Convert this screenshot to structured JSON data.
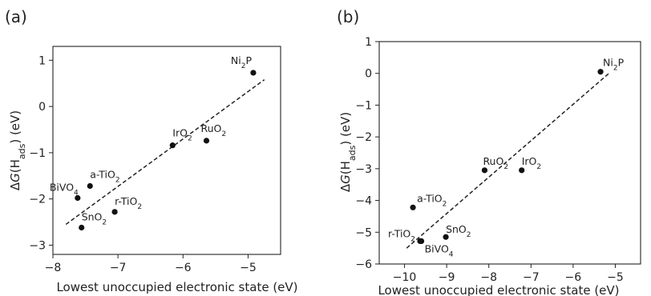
{
  "chart_data": [
    {
      "type": "scatter",
      "panel_label": "(a)",
      "xlabel": "Lowest unoccupied electronic state (eV)",
      "ylabel": "ΔG(H_ads) (eV)",
      "xlim": [
        -8,
        -4.5
      ],
      "ylim": [
        -3.2,
        1.3
      ],
      "xticks": [
        "−8",
        "−7",
        "−6",
        "−5"
      ],
      "yticks": [
        "1",
        "0",
        "−1",
        "−2",
        "−3"
      ],
      "grid": false,
      "points": [
        {
          "label": "Ni₂P",
          "x": -4.92,
          "y": 0.73
        },
        {
          "label": "IrO₂",
          "x": -6.16,
          "y": -0.84
        },
        {
          "label": "RuO₂",
          "x": -5.64,
          "y": -0.74
        },
        {
          "label": "a-TiO₂",
          "x": -7.43,
          "y": -1.72
        },
        {
          "label": "BiVO₄",
          "x": -7.62,
          "y": -1.98
        },
        {
          "label": "r-TiO₂",
          "x": -7.05,
          "y": -2.28
        },
        {
          "label": "SnO₂",
          "x": -7.56,
          "y": -2.62
        }
      ],
      "fit_line": {
        "x": [
          -7.8,
          -4.75
        ],
        "y": [
          -2.55,
          0.58
        ],
        "style": "dashed"
      }
    },
    {
      "type": "scatter",
      "panel_label": "(b)",
      "xlabel": "Lowest unoccupied electronic state (eV)",
      "ylabel": "ΔG(H_ads) (eV)",
      "xlim": [
        -10.6,
        -4.4
      ],
      "ylim": [
        -6,
        1
      ],
      "xticks": [
        "−10",
        "−9",
        "−8",
        "−7",
        "−6",
        "−5"
      ],
      "yticks": [
        "1",
        "0",
        "−1",
        "−2",
        "−3",
        "−4",
        "−5",
        "−6"
      ],
      "grid": false,
      "points": [
        {
          "label": "Ni₂P",
          "x": -5.35,
          "y": 0.05
        },
        {
          "label": "RuO₂",
          "x": -8.1,
          "y": -3.05
        },
        {
          "label": "IrO₂",
          "x": -7.22,
          "y": -3.05
        },
        {
          "label": "a-TiO₂",
          "x": -9.8,
          "y": -4.22
        },
        {
          "label": "r-TiO₂",
          "x": -9.63,
          "y": -5.28
        },
        {
          "label": "SnO₂",
          "x": -9.02,
          "y": -5.15
        },
        {
          "label": "BiVO₄",
          "x": -9.6,
          "y": -5.28
        }
      ],
      "fit_line": {
        "x": [
          -9.95,
          -5.15
        ],
        "y": [
          -5.5,
          0.0
        ],
        "style": "dashed"
      }
    }
  ]
}
